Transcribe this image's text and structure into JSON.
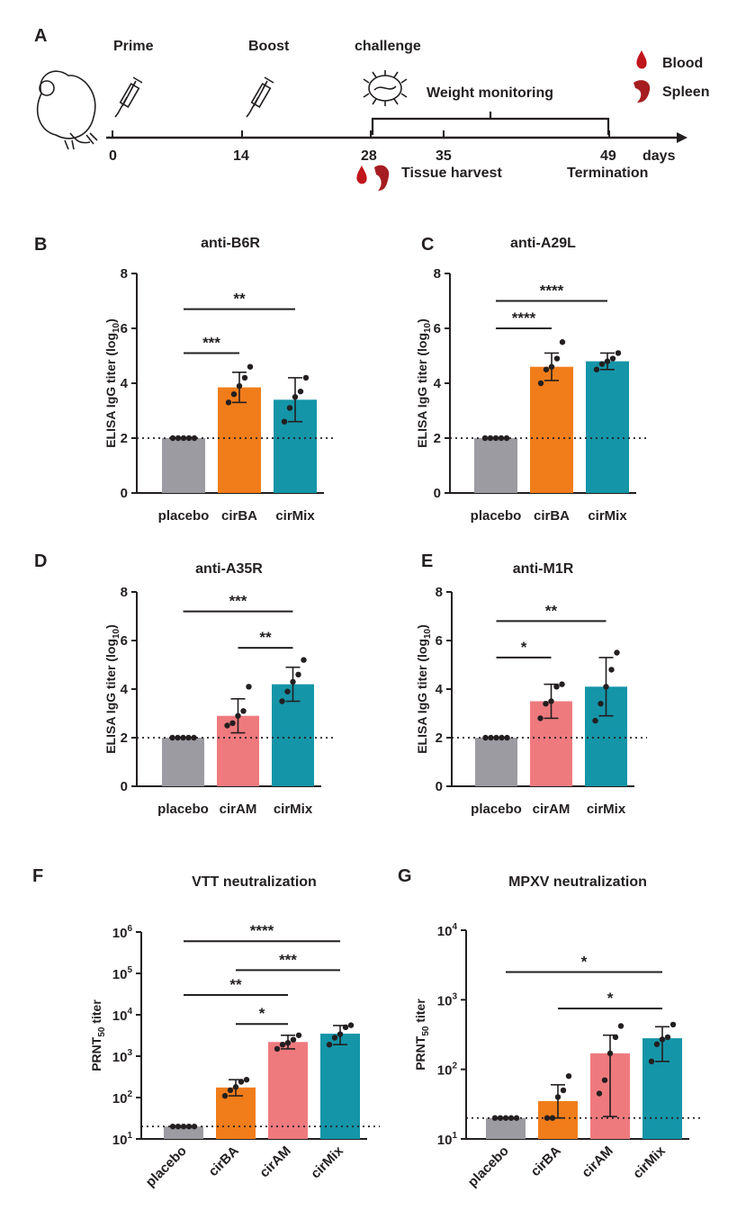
{
  "timeline": {
    "label": "A",
    "events": [
      {
        "name": "Prime",
        "day": 0
      },
      {
        "name": "Boost",
        "day": 14
      },
      {
        "name": "challenge",
        "day": 28
      }
    ],
    "ticks": [
      "0",
      "14",
      "28",
      "35",
      "49"
    ],
    "unit": "days",
    "bracket_label": "Weight monitoring",
    "harvest_label": "Tissue harvest",
    "termination_label": "Termination",
    "legend": {
      "blood": "Blood",
      "spleen": "Spleen"
    },
    "colors": {
      "blood": "#c0161c",
      "spleen": "#a51d20"
    }
  },
  "colors": {
    "placebo": "#9b9ba1",
    "cirBA": "#f07d1a",
    "cirAM": "#ef7a7e",
    "cirMix": "#1495a8"
  },
  "chart_data": [
    {
      "label": "B",
      "type": "bar",
      "title": "anti-B6R",
      "ylabel": "ELISA IgG titer (log",
      "ylabel_sub": "10",
      "ylabel_end": ")",
      "ylim": [
        0,
        8
      ],
      "yticks": [
        "0",
        "2",
        "4",
        "6",
        "8"
      ],
      "log": false,
      "threshold": 2,
      "categories": [
        "placebo",
        "cirBA",
        "cirMix"
      ],
      "rotated": false,
      "values": [
        2.0,
        3.85,
        3.4
      ],
      "err": [
        [
          2.0,
          2.0
        ],
        [
          3.3,
          4.4
        ],
        [
          2.6,
          4.2
        ]
      ],
      "points": [
        [
          2,
          2,
          2,
          2,
          2
        ],
        [
          3.3,
          3.6,
          3.9,
          4.2,
          4.6
        ],
        [
          2.6,
          3.1,
          3.5,
          3.7,
          4.2
        ]
      ],
      "sig": [
        {
          "from": 0,
          "to": 1,
          "y": 5.1,
          "text": "***"
        },
        {
          "from": 0,
          "to": 2,
          "y": 6.7,
          "text": "**"
        }
      ]
    },
    {
      "label": "C",
      "type": "bar",
      "title": "anti-A29L",
      "ylabel": "ELISA IgG titer (log",
      "ylabel_sub": "10",
      "ylabel_end": ")",
      "ylim": [
        0,
        8
      ],
      "yticks": [
        "0",
        "2",
        "4",
        "6",
        "8"
      ],
      "log": false,
      "threshold": 2,
      "categories": [
        "placebo",
        "cirBA",
        "cirMix"
      ],
      "rotated": false,
      "values": [
        2.0,
        4.6,
        4.8
      ],
      "err": [
        [
          2.0,
          2.0
        ],
        [
          4.1,
          5.1
        ],
        [
          4.5,
          5.1
        ]
      ],
      "points": [
        [
          2,
          2,
          2,
          2,
          2
        ],
        [
          4.0,
          4.5,
          4.6,
          4.9,
          5.5
        ],
        [
          4.5,
          4.7,
          4.8,
          4.9,
          5.1
        ]
      ],
      "sig": [
        {
          "from": 0,
          "to": 1,
          "y": 6.0,
          "text": "****"
        },
        {
          "from": 0,
          "to": 2,
          "y": 7.0,
          "text": "****"
        }
      ]
    },
    {
      "label": "D",
      "type": "bar",
      "title": "anti-A35R",
      "ylabel": "ELISA IgG titer (log",
      "ylabel_sub": "10",
      "ylabel_end": ")",
      "ylim": [
        0,
        8
      ],
      "yticks": [
        "0",
        "2",
        "4",
        "6",
        "8"
      ],
      "log": false,
      "threshold": 2,
      "categories": [
        "placebo",
        "cirAM",
        "cirMix"
      ],
      "rotated": false,
      "values": [
        2.0,
        2.9,
        4.2
      ],
      "err": [
        [
          2.0,
          2.0
        ],
        [
          2.2,
          3.6
        ],
        [
          3.5,
          4.9
        ]
      ],
      "points": [
        [
          2,
          2,
          2,
          2,
          2
        ],
        [
          2.5,
          2.6,
          2.9,
          3.1,
          4.1
        ],
        [
          3.5,
          3.9,
          4.3,
          4.6,
          5.2
        ]
      ],
      "sig": [
        {
          "from": 1,
          "to": 2,
          "y": 5.7,
          "text": "**"
        },
        {
          "from": 0,
          "to": 2,
          "y": 7.2,
          "text": "***"
        }
      ]
    },
    {
      "label": "E",
      "type": "bar",
      "title": "anti-M1R",
      "ylabel": "ELISA IgG titer (log",
      "ylabel_sub": "10",
      "ylabel_end": ")",
      "ylim": [
        0,
        8
      ],
      "yticks": [
        "0",
        "2",
        "4",
        "6",
        "8"
      ],
      "log": false,
      "threshold": 2,
      "categories": [
        "placebo",
        "cirAM",
        "cirMix"
      ],
      "rotated": false,
      "values": [
        2.0,
        3.5,
        4.1
      ],
      "err": [
        [
          2.0,
          2.0
        ],
        [
          2.8,
          4.2
        ],
        [
          2.9,
          5.3
        ]
      ],
      "points": [
        [
          2,
          2,
          2,
          2,
          2
        ],
        [
          2.8,
          3.4,
          3.5,
          4.1,
          4.2
        ],
        [
          2.7,
          3.4,
          4.1,
          4.8,
          5.5
        ]
      ],
      "sig": [
        {
          "from": 0,
          "to": 1,
          "y": 5.3,
          "text": "*"
        },
        {
          "from": 0,
          "to": 2,
          "y": 6.8,
          "text": "**"
        }
      ]
    },
    {
      "label": "F",
      "type": "bar",
      "title": "VTT  neutralization",
      "ylabel": "PRNT",
      "ylabel_sub": "50",
      "ylabel_end": " titer",
      "ylim": [
        10,
        1000000
      ],
      "yticks": [
        "1",
        "2",
        "3",
        "4",
        "5",
        "6"
      ],
      "log": true,
      "threshold": 20,
      "categories": [
        "placebo",
        "cirBA",
        "cirAM",
        "cirMix"
      ],
      "rotated": true,
      "values": [
        20,
        175,
        2200,
        3500
      ],
      "err": [
        [
          20,
          20
        ],
        [
          110,
          270
        ],
        [
          1500,
          3200
        ],
        [
          1900,
          5500
        ]
      ],
      "points": [
        [
          20,
          20,
          20,
          20,
          20
        ],
        [
          110,
          150,
          180,
          240,
          270
        ],
        [
          1500,
          1900,
          2100,
          2500,
          3200
        ],
        [
          1900,
          2800,
          3400,
          5000,
          5600
        ]
      ],
      "sig": [
        {
          "from": 1,
          "to": 2,
          "y": 6000,
          "text": "*"
        },
        {
          "from": 0,
          "to": 2,
          "y": 30000,
          "text": "**"
        },
        {
          "from": 1,
          "to": 3,
          "y": 120000,
          "text": "***"
        },
        {
          "from": 0,
          "to": 3,
          "y": 600000,
          "text": "****"
        }
      ]
    },
    {
      "label": "G",
      "type": "bar",
      "title": "MPXV neutralization",
      "ylabel": "PRNT",
      "ylabel_sub": "50",
      "ylabel_end": " titer",
      "ylim": [
        10,
        10000
      ],
      "yticks": [
        "1",
        "2",
        "3",
        "4"
      ],
      "log": true,
      "threshold": 20,
      "categories": [
        "placebo",
        "cirBA",
        "cirAM",
        "cirMix"
      ],
      "rotated": true,
      "values": [
        20,
        35,
        170,
        280
      ],
      "err": [
        [
          20,
          20
        ],
        [
          20,
          60
        ],
        [
          21,
          310
        ],
        [
          130,
          410
        ]
      ],
      "points": [
        [
          20,
          20,
          20,
          20,
          20
        ],
        [
          20,
          20,
          40,
          50,
          80
        ],
        [
          45,
          70,
          170,
          290,
          420
        ],
        [
          130,
          230,
          270,
          290,
          440
        ]
      ],
      "sig": [
        {
          "from": 1,
          "to": 3,
          "y": 750,
          "text": "*"
        },
        {
          "from": 0,
          "to": 3,
          "y": 2500,
          "text": "*"
        }
      ]
    }
  ]
}
